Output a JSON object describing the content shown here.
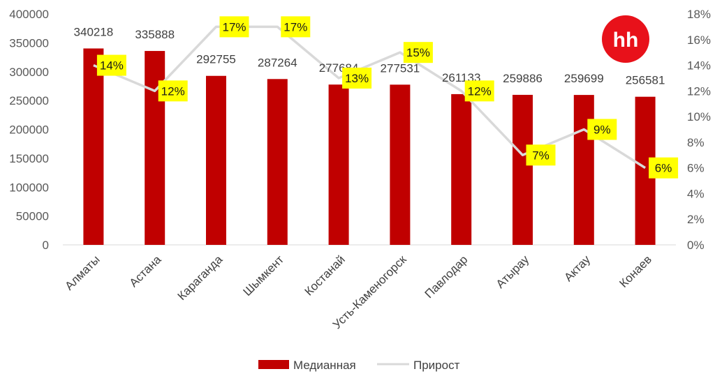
{
  "logo": {
    "text": "hh",
    "color": "#e8111a"
  },
  "chart_data": {
    "type": "bar",
    "categories": [
      "Алматы",
      "Астана",
      "Караганда",
      "Шымкент",
      "Костанай",
      "Усть-Каменогорск",
      "Павлодар",
      "Атырау",
      "Актау",
      "Конаев"
    ],
    "series": [
      {
        "name": "Медианная",
        "type": "bar",
        "axis": "left",
        "color": "#c00000",
        "values": [
          340218,
          335888,
          292755,
          287264,
          277684,
          277531,
          261133,
          259886,
          259699,
          256581
        ]
      },
      {
        "name": "Прирост",
        "type": "line",
        "axis": "right",
        "color": "#d9d9d9",
        "values": [
          14,
          12,
          17,
          17,
          13,
          15,
          12,
          7,
          9,
          6
        ],
        "labels": [
          "14%",
          "12%",
          "17%",
          "17%",
          "13%",
          "15%",
          "12%",
          "7%",
          "9%",
          "6%"
        ],
        "label_background": "#ffff00"
      }
    ],
    "y_left": {
      "min": 0,
      "max": 400000,
      "step": 50000,
      "ticks": [
        "0",
        "50000",
        "100000",
        "150000",
        "200000",
        "250000",
        "300000",
        "350000",
        "400000"
      ]
    },
    "y_right": {
      "min": 0,
      "max": 18,
      "step": 2,
      "ticks": [
        "0%",
        "2%",
        "4%",
        "6%",
        "8%",
        "10%",
        "12%",
        "14%",
        "16%",
        "18%"
      ]
    },
    "grid": false,
    "legend": {
      "position": "bottom",
      "items": [
        "Медианная",
        "Прирост"
      ]
    }
  }
}
